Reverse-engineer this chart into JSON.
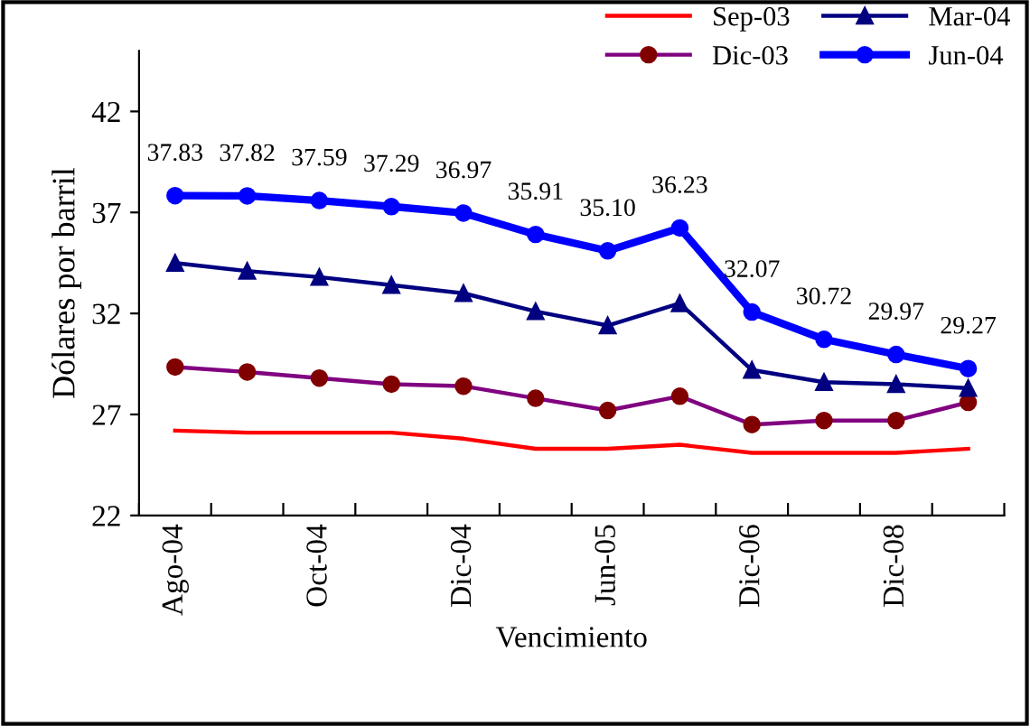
{
  "chart_data": {
    "type": "line",
    "xlabel": "Vencimiento",
    "ylabel": "Dólares por barril",
    "categories": [
      "Ago-04",
      null,
      "Oct-04",
      null,
      "Dic-04",
      null,
      "Jun-05",
      null,
      "Dic-06",
      null,
      "Dic-08",
      null
    ],
    "series": [
      {
        "name": "Sep-03",
        "color": "#ff0000",
        "marker": "none",
        "values": [
          26.2,
          26.1,
          26.1,
          26.1,
          25.8,
          25.3,
          25.3,
          25.5,
          25.1,
          25.1,
          25.1,
          25.3
        ]
      },
      {
        "name": "Dic-03",
        "color": "#800080",
        "marker": "circle",
        "values": [
          29.35,
          29.1,
          28.8,
          28.5,
          28.4,
          27.8,
          27.2,
          27.9,
          26.5,
          26.7,
          26.7,
          27.6
        ]
      },
      {
        "name": "Mar-04",
        "color": "#000080",
        "marker": "triangle",
        "values": [
          34.5,
          34.1,
          33.8,
          33.4,
          33.0,
          32.1,
          31.4,
          32.5,
          29.2,
          28.6,
          28.5,
          28.3
        ]
      },
      {
        "name": "Jun-04",
        "color": "#0000ff",
        "marker": "circle",
        "values": [
          37.83,
          37.82,
          37.59,
          37.29,
          36.97,
          35.91,
          35.1,
          36.23,
          32.07,
          30.72,
          29.97,
          29.27
        ],
        "value_labels": [
          "37.83",
          "37.82",
          "37.59",
          "37.29",
          "36.97",
          "35.91",
          "35.10",
          "36.23",
          "32.07",
          "30.72",
          "29.97",
          "29.27"
        ]
      }
    ],
    "ylim": [
      22,
      45
    ],
    "yticks": [
      22,
      27,
      32,
      37,
      42
    ],
    "legend": "top right",
    "grid": false
  }
}
